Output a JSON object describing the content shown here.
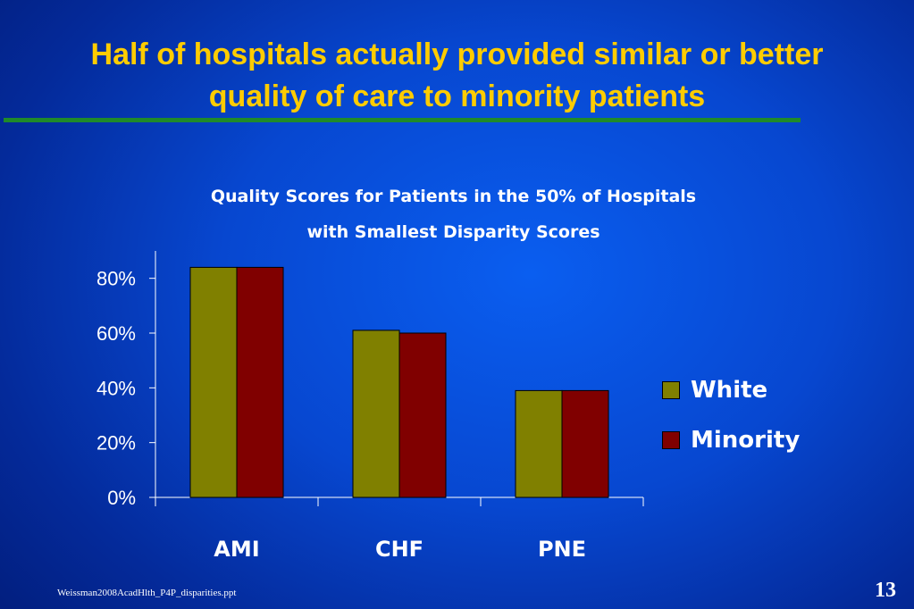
{
  "slide": {
    "title_line1": "Half of hospitals actually provided similar or better",
    "title_line2": "quality of care to minority patients",
    "footer_file": "Weissman2008AcadHlth_P4P_disparities.ppt",
    "page_number": "13"
  },
  "colors": {
    "title": "#ffcc00",
    "rule": "#1f8a2a",
    "white_series": "#808000",
    "minority_series": "#800000"
  },
  "chart_data": {
    "type": "bar",
    "title_line1": "Quality Scores for Patients in the 50% of Hospitals",
    "title_line2": "with Smallest Disparity Scores",
    "categories": [
      "AMI",
      "CHF",
      "PNE"
    ],
    "series": [
      {
        "name": "White",
        "values": [
          84,
          61,
          39
        ]
      },
      {
        "name": "Minority",
        "values": [
          84,
          60,
          39
        ]
      }
    ],
    "ylim": [
      0,
      90
    ],
    "yticks": [
      "0%",
      "20%",
      "40%",
      "60%",
      "80%"
    ],
    "ytick_values": [
      0,
      20,
      40,
      60,
      80
    ],
    "grid": false,
    "legend_position": "right"
  }
}
